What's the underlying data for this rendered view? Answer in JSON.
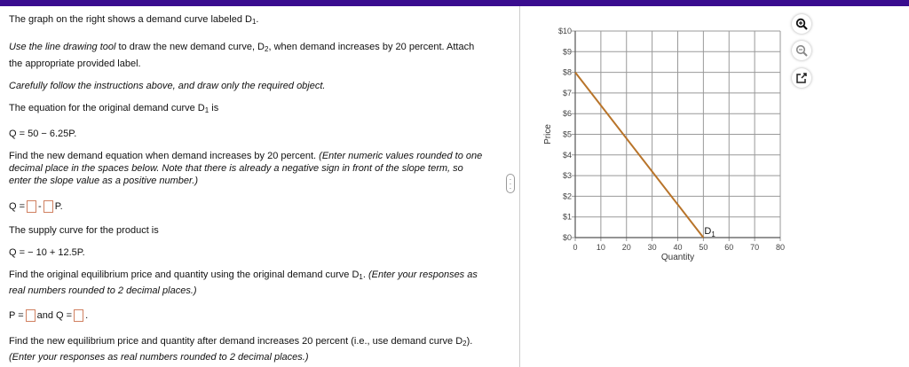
{
  "accent_color": "#3a0d8f",
  "question": {
    "l1": "The graph on the right shows a demand curve labeled D",
    "l2_it": "Use the line drawing tool",
    "l2": " to draw the new demand curve, D",
    "l2b": ", when demand increases by 20 percent.  Attach",
    "l3": "the appropriate provided label.",
    "l4": "Carefully follow the instructions above, and draw only the required object.",
    "l5": "The equation for the original demand curve D",
    "l5b": " is",
    "l6": "Q = 50 − 6.25P.",
    "l7": "Find the new demand equation when demand increases by 20 percent.  ",
    "l7_it": "(Enter numeric values rounded to one",
    "l8": "decimal place in the spaces below.  Note that there is already a negative sign in front of the slope term, so",
    "l9": "enter the slope value as a positive number.)",
    "eq_q": "Q =",
    "eq_minus": "-",
    "eq_p": "P.",
    "l10": "The supply curve for the product is",
    "l11": "Q = − 10 + 12.5P.",
    "l12": "Find the original equilibrium price and quantity using the original demand curve D",
    "l12b": ".  ",
    "l12_it": "(Enter your responses as",
    "l13": "real numbers rounded to 2 decimal places.)",
    "p_eq": "P =",
    "and_q": "and Q =",
    "period": ".",
    "l14": "Find the new equilibrium price and quantity after demand increases 20 percent (i.e., use demand curve D",
    "l14b": ").",
    "l15": "(Enter your responses as real numbers rounded to 2 decimal places.)",
    "sub1": "1",
    "sub2": "2"
  },
  "chart_data": {
    "type": "line",
    "xlabel": "Quantity",
    "ylabel": "Price",
    "xlim": [
      0,
      80
    ],
    "ylim": [
      0,
      10
    ],
    "x_ticks": [
      "0",
      "10",
      "20",
      "30",
      "40",
      "50",
      "60",
      "70",
      "80"
    ],
    "y_ticks": [
      "$0",
      "$1",
      "$2",
      "$3",
      "$4",
      "$5",
      "$6",
      "$7",
      "$8",
      "$9",
      "$10"
    ],
    "grid": true,
    "series": [
      {
        "name": "D1",
        "label": "D",
        "label_sub": "1",
        "color": "#b8742a",
        "points": [
          [
            0,
            8
          ],
          [
            50,
            0
          ]
        ]
      }
    ]
  },
  "tools": [
    "zoom-in-icon",
    "zoom-out-icon",
    "pop-out-icon"
  ]
}
